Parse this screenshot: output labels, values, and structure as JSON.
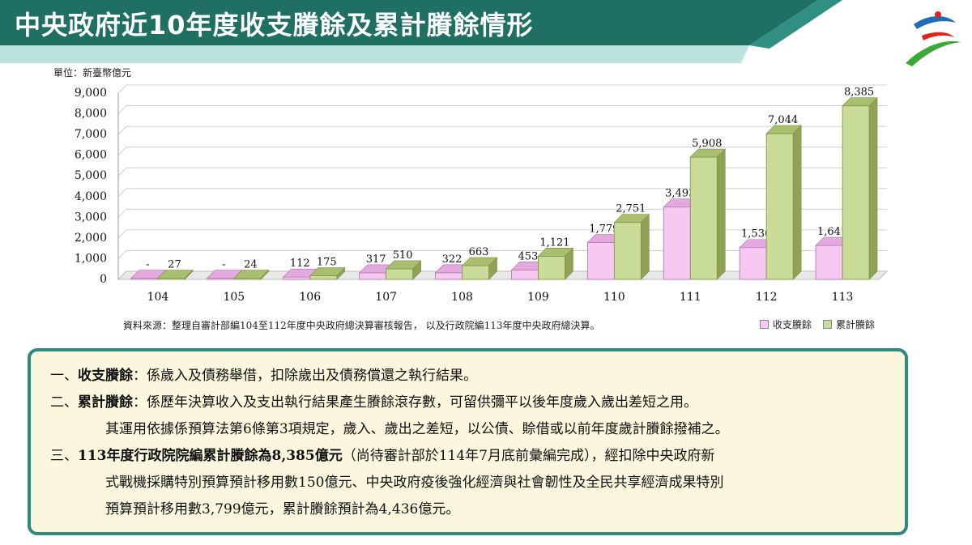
{
  "header": {
    "title": "中央政府近10年度收支賸餘及累計賸餘情形"
  },
  "colors": {
    "title_bg": "#1f6f63",
    "accent_strip": "#8fd0c8",
    "bar_balance": "#f7c8f2",
    "bar_cumulative": "#c9dc98",
    "notes_border": "#2e8a80"
  },
  "unit_label": "單位：新臺幣億元",
  "source_text": "資料來源：整理自審計部編104至112年度中央政府總決算審核報告， 以及行政院編113年度中央政府總決算。",
  "chart_data": {
    "type": "bar",
    "categories": [
      "104",
      "105",
      "106",
      "107",
      "108",
      "109",
      "110",
      "111",
      "112",
      "113"
    ],
    "series": [
      {
        "name": "收支賸餘",
        "values": [
          0,
          0,
          112,
          317,
          322,
          453,
          1779,
          3493,
          1536,
          1641
        ],
        "labels": [
          "-",
          "-",
          "112",
          "317",
          "322",
          "453",
          "1,779",
          "3,493",
          "1,536",
          "1,641"
        ]
      },
      {
        "name": "累計賸餘",
        "values": [
          27,
          24,
          175,
          510,
          663,
          1121,
          2751,
          5908,
          7044,
          8385
        ],
        "labels": [
          "27",
          "24",
          "175",
          "510",
          "663",
          "1,121",
          "2,751",
          "5,908",
          "7,044",
          "8,385"
        ]
      }
    ],
    "yticks": [
      "0",
      "1,000",
      "2,000",
      "3,000",
      "4,000",
      "5,000",
      "6,000",
      "7,000",
      "8,000",
      "9,000"
    ],
    "ylim": [
      0,
      9000
    ],
    "grid": true,
    "legend_position": "bottom-right"
  },
  "notes": [
    {
      "prefix": "一、",
      "bold": "收支賸餘",
      "text": "：係歲入及債務舉借，扣除歲出及債務償還之執行結果。"
    },
    {
      "prefix": "二、",
      "bold": "累計賸餘",
      "text": "：係歷年決算收入及支出執行結果產生賸餘滾存數，可留供彌平以後年度歲入歲出差短之用。"
    },
    {
      "prefix": "",
      "bold": "",
      "text": "其運用依據係預算法第6條第3項規定，歲入、歲出之差短，以公債、賒借或以前年度歲計賸餘撥補之。"
    },
    {
      "prefix": "三、",
      "bold": "113年度行政院院編累計賸餘為8,385億元",
      "text": "（尚待審計部於114年7月底前彙編完成），經扣除中央政府新"
    },
    {
      "prefix": "",
      "bold": "",
      "text": "式戰機採購特別預算預計移用數150億元、中央政府疫後強化經濟與社會韌性及全民共享經濟成果特別"
    },
    {
      "prefix": "",
      "bold": "",
      "text": "預算預計移用數3,799億元，累計賸餘預計為4,436億元。"
    }
  ]
}
